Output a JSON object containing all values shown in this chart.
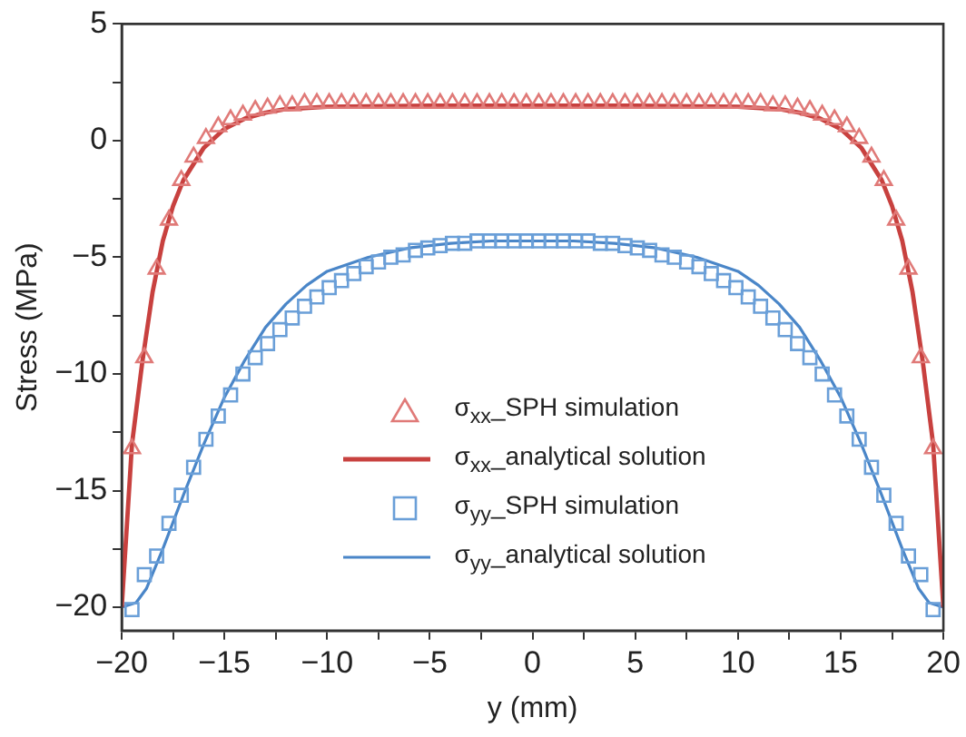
{
  "chart_data": {
    "type": "line",
    "xlabel": "y (mm)",
    "ylabel": "Stress (MPa)",
    "xlim": [
      -20,
      20
    ],
    "ylim": [
      -21,
      5
    ],
    "xticks": [
      -20,
      {
        "value": -17.5,
        "label": null
      },
      -15,
      {
        "value": -12.5,
        "label": null
      },
      -10,
      {
        "value": -7.5,
        "label": null
      },
      -5,
      {
        "value": -2.5,
        "label": null
      },
      0,
      {
        "value": 2.5,
        "label": null
      },
      5,
      {
        "value": 7.5,
        "label": null
      },
      10,
      {
        "value": 12.5,
        "label": null
      },
      15,
      {
        "value": 17.5,
        "label": null
      },
      20
    ],
    "yticks": [
      -20,
      {
        "value": -17.5,
        "label": null
      },
      -15,
      {
        "value": -12.5,
        "label": null
      },
      -10,
      {
        "value": -7.5,
        "label": null
      },
      -5,
      {
        "value": -2.5,
        "label": null
      },
      0,
      {
        "value": 2.5,
        "label": null
      },
      5
    ],
    "grid": false,
    "legend": "bottom",
    "series": [
      {
        "name": "σ$_{xx}$_SPH simulation",
        "type": "scatter",
        "marker": "triangle",
        "color": "#e07a78",
        "x": [
          -19.5,
          -18.9,
          -18.3,
          -17.7,
          -17.1,
          -16.5,
          -15.9,
          -15.3,
          -14.7,
          -14.1,
          -13.5,
          -12.9,
          -12.3,
          -11.7,
          -11.1,
          -10.5,
          -9.9,
          -9.3,
          -8.7,
          -8.1,
          -7.5,
          -6.9,
          -6.3,
          -5.7,
          -5.1,
          -4.5,
          -3.9,
          -3.3,
          -2.7,
          -2.1,
          -1.5,
          -0.9,
          -0.3,
          0.3,
          0.9,
          1.5,
          2.1,
          2.7,
          3.3,
          3.9,
          4.5,
          5.1,
          5.7,
          6.3,
          6.9,
          7.5,
          8.1,
          8.7,
          9.3,
          9.9,
          10.5,
          11.1,
          11.7,
          12.3,
          12.9,
          13.5,
          14.1,
          14.7,
          15.3,
          15.9,
          16.5,
          17.1,
          17.7,
          18.3,
          18.9,
          19.5
        ],
        "values": [
          -13.2,
          -9.3,
          -5.5,
          -3.4,
          -1.7,
          -0.7,
          0.1,
          0.6,
          0.9,
          1.1,
          1.3,
          1.4,
          1.5,
          1.5,
          1.6,
          1.6,
          1.6,
          1.6,
          1.6,
          1.6,
          1.6,
          1.6,
          1.6,
          1.6,
          1.6,
          1.6,
          1.6,
          1.6,
          1.6,
          1.6,
          1.6,
          1.6,
          1.6,
          1.6,
          1.6,
          1.6,
          1.6,
          1.6,
          1.6,
          1.6,
          1.6,
          1.6,
          1.6,
          1.6,
          1.6,
          1.6,
          1.6,
          1.6,
          1.6,
          1.6,
          1.6,
          1.6,
          1.5,
          1.5,
          1.4,
          1.3,
          1.1,
          0.9,
          0.6,
          0.1,
          -0.7,
          -1.7,
          -3.4,
          -5.5,
          -9.3,
          -13.2
        ]
      },
      {
        "name": "σ$_{xx}$_analytical solution",
        "type": "line",
        "marker": "none",
        "color": "#c8413f",
        "x": [
          -20,
          -19.5,
          -19,
          -18.5,
          -18,
          -17.5,
          -17,
          -16,
          -15,
          -14,
          -13,
          -12,
          -10,
          -5,
          0,
          5,
          10,
          12,
          13,
          14,
          15,
          16,
          17,
          17.5,
          18,
          18.5,
          19,
          19.5,
          20
        ],
        "values": [
          -20,
          -13,
          -9.5,
          -6.5,
          -4.3,
          -2.8,
          -1.7,
          -0.3,
          0.5,
          0.95,
          1.2,
          1.35,
          1.45,
          1.5,
          1.5,
          1.5,
          1.45,
          1.35,
          1.2,
          0.95,
          0.5,
          -0.3,
          -1.7,
          -2.8,
          -4.3,
          -6.5,
          -9.5,
          -13,
          -20
        ]
      },
      {
        "name": "σ$_{yy}$_SPH simulation",
        "type": "scatter",
        "marker": "square",
        "color": "#6a9fd8",
        "x": [
          -19.5,
          -18.9,
          -18.3,
          -17.7,
          -17.1,
          -16.5,
          -15.9,
          -15.3,
          -14.7,
          -14.1,
          -13.5,
          -12.9,
          -12.3,
          -11.7,
          -11.1,
          -10.5,
          -9.9,
          -9.3,
          -8.7,
          -8.1,
          -7.5,
          -6.9,
          -6.3,
          -5.7,
          -5.1,
          -4.5,
          -3.9,
          -3.3,
          -2.7,
          -2.1,
          -1.5,
          -0.9,
          -0.3,
          0.3,
          0.9,
          1.5,
          2.1,
          2.7,
          3.3,
          3.9,
          4.5,
          5.1,
          5.7,
          6.3,
          6.9,
          7.5,
          8.1,
          8.7,
          9.3,
          9.9,
          10.5,
          11.1,
          11.7,
          12.3,
          12.9,
          13.5,
          14.1,
          14.7,
          15.3,
          15.9,
          16.5,
          17.1,
          17.7,
          18.3,
          18.9,
          19.5
        ],
        "values": [
          -20.1,
          -18.6,
          -17.8,
          -16.4,
          -15.2,
          -14,
          -12.8,
          -11.8,
          -10.9,
          -10,
          -9.3,
          -8.7,
          -8.1,
          -7.6,
          -7.1,
          -6.7,
          -6.3,
          -6,
          -5.7,
          -5.4,
          -5.2,
          -5,
          -4.9,
          -4.7,
          -4.6,
          -4.5,
          -4.4,
          -4.4,
          -4.3,
          -4.3,
          -4.3,
          -4.3,
          -4.3,
          -4.3,
          -4.3,
          -4.3,
          -4.3,
          -4.3,
          -4.4,
          -4.4,
          -4.5,
          -4.6,
          -4.7,
          -4.9,
          -5,
          -5.2,
          -5.4,
          -5.7,
          -6,
          -6.3,
          -6.7,
          -7.1,
          -7.6,
          -8.1,
          -8.7,
          -9.3,
          -10,
          -10.9,
          -11.8,
          -12.8,
          -14,
          -15.2,
          -16.4,
          -17.8,
          -18.6,
          -20.1
        ]
      },
      {
        "name": "σ$_{yy}$_analytical solution",
        "type": "line",
        "marker": "none",
        "color": "#4a86c8",
        "x": [
          -20,
          -19.3,
          -18.8,
          -18,
          -17,
          -16,
          -15,
          -14,
          -13,
          -12,
          -11,
          -10,
          -8,
          -6,
          -4,
          -2,
          0,
          2,
          4,
          6,
          8,
          10,
          11,
          12,
          13,
          14,
          15,
          16,
          17,
          18,
          18.8,
          19.3,
          20
        ],
        "values": [
          -20,
          -19.8,
          -19.2,
          -17.5,
          -15.2,
          -13,
          -11,
          -9.4,
          -8,
          -7,
          -6.2,
          -5.6,
          -5,
          -4.6,
          -4.4,
          -4.3,
          -4.3,
          -4.3,
          -4.4,
          -4.6,
          -5,
          -5.6,
          -6.2,
          -7,
          -8,
          -9.4,
          -11,
          -13,
          -15.2,
          -17.5,
          -19.2,
          -19.8,
          -20
        ]
      }
    ]
  }
}
